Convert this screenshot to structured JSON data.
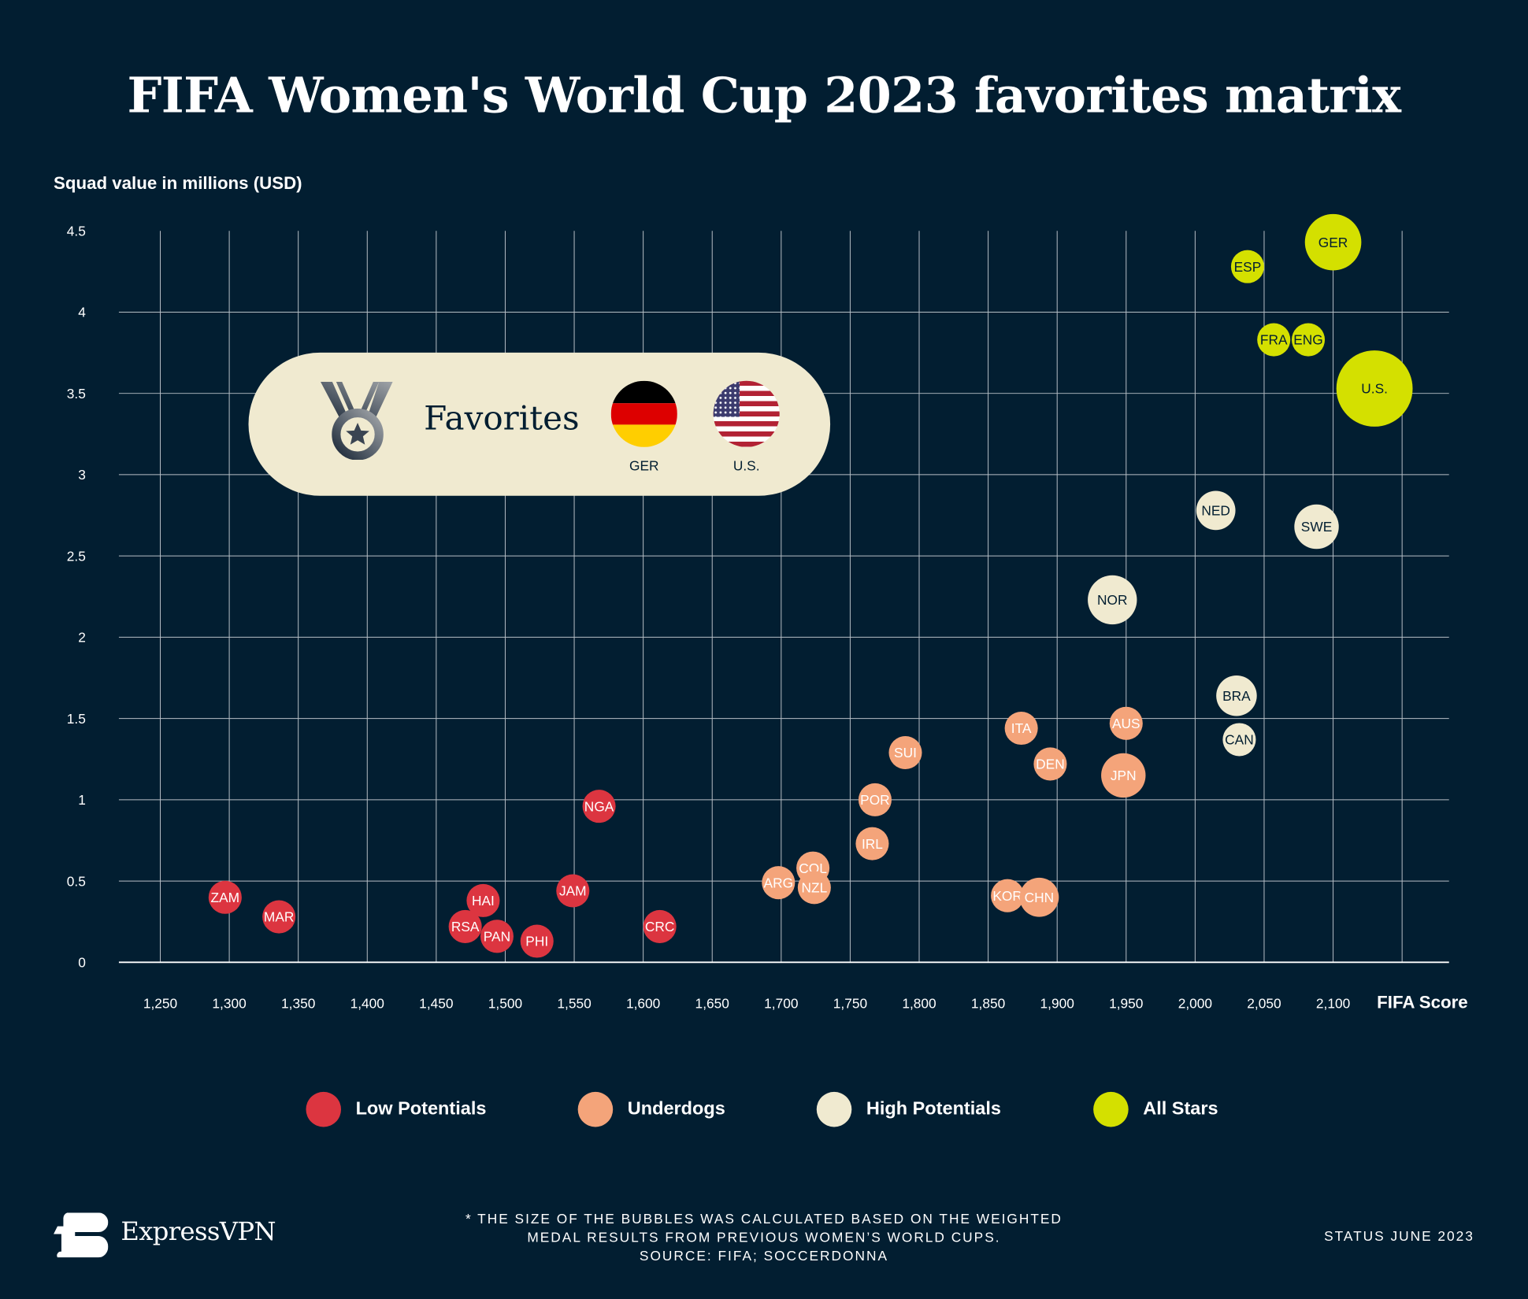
{
  "title": "FIFA Women's World Cup 2023 favorites matrix",
  "colors": {
    "background": "#021e31",
    "Low Potentials": "#dc3540",
    "Underdogs": "#f4a47a",
    "High Potentials": "#f0ead0",
    "All Stars": "#d4e000"
  },
  "favorites": {
    "label": "Favorites",
    "icon": "medal-icon",
    "teams": [
      {
        "code": "GER",
        "flag": "germany-flag-icon"
      },
      {
        "code": "U.S.",
        "flag": "usa-flag-icon"
      }
    ]
  },
  "chart_data": {
    "type": "scatter",
    "title": "FIFA Women's World Cup 2023 favorites matrix",
    "xlabel": "FIFA Score",
    "ylabel": "Squad value in millions (USD)",
    "xlim": [
      1220,
      2184
    ],
    "ylim": [
      0,
      4.5
    ],
    "xticks": [
      1250,
      1300,
      1350,
      1400,
      1450,
      1500,
      1550,
      1600,
      1650,
      1700,
      1750,
      1800,
      1850,
      1900,
      1950,
      2000,
      2050,
      2100
    ],
    "xtick_labels": [
      "1,250",
      "1,300",
      "1,350",
      "1,400",
      "1,450",
      "1,500",
      "1,550",
      "1,600",
      "1,650",
      "1,700",
      "1,750",
      "1,800",
      "1,850",
      "1,900",
      "1,950",
      "2,000",
      "2,050",
      "2,100"
    ],
    "yticks": [
      0,
      0.5,
      1,
      1.5,
      2,
      2.5,
      3,
      3.5,
      4,
      4.5
    ],
    "ytick_labels": [
      "0",
      "0.5",
      "1",
      "1.5",
      "2",
      "2.5",
      "3",
      "3.5",
      "4",
      "4.5"
    ],
    "grid": true,
    "legend_position": "bottom",
    "bubble_size_note": "relative weighted medal results",
    "series": [
      {
        "name": "Low Potentials",
        "points": [
          {
            "label": "ZAM",
            "x": 1297,
            "y": 0.4,
            "size": 1
          },
          {
            "label": "MAR",
            "x": 1336,
            "y": 0.28,
            "size": 1
          },
          {
            "label": "HAI",
            "x": 1484,
            "y": 0.38,
            "size": 1
          },
          {
            "label": "RSA",
            "x": 1471,
            "y": 0.22,
            "size": 1
          },
          {
            "label": "PAN",
            "x": 1494,
            "y": 0.16,
            "size": 1
          },
          {
            "label": "PHI",
            "x": 1523,
            "y": 0.13,
            "size": 1
          },
          {
            "label": "JAM",
            "x": 1549,
            "y": 0.44,
            "size": 1
          },
          {
            "label": "NGA",
            "x": 1568,
            "y": 0.96,
            "size": 1
          },
          {
            "label": "CRC",
            "x": 1612,
            "y": 0.22,
            "size": 1
          }
        ]
      },
      {
        "name": "Underdogs",
        "points": [
          {
            "label": "ARG",
            "x": 1698,
            "y": 0.49,
            "size": 1
          },
          {
            "label": "COL",
            "x": 1723,
            "y": 0.58,
            "size": 1
          },
          {
            "label": "NZL",
            "x": 1724,
            "y": 0.46,
            "size": 1
          },
          {
            "label": "IRL",
            "x": 1766,
            "y": 0.73,
            "size": 1
          },
          {
            "label": "POR",
            "x": 1768,
            "y": 1.0,
            "size": 1
          },
          {
            "label": "SUI",
            "x": 1790,
            "y": 1.29,
            "size": 1
          },
          {
            "label": "ITA",
            "x": 1874,
            "y": 1.44,
            "size": 1
          },
          {
            "label": "DEN",
            "x": 1895,
            "y": 1.22,
            "size": 1
          },
          {
            "label": "KOR",
            "x": 1864,
            "y": 0.41,
            "size": 1
          },
          {
            "label": "CHN",
            "x": 1887,
            "y": 0.4,
            "size": 1.4
          },
          {
            "label": "AUS",
            "x": 1950,
            "y": 1.47,
            "size": 1
          },
          {
            "label": "JPN",
            "x": 1948,
            "y": 1.15,
            "size": 1.8
          }
        ]
      },
      {
        "name": "High Potentials",
        "points": [
          {
            "label": "NOR",
            "x": 1940,
            "y": 2.23,
            "size": 2.2
          },
          {
            "label": "NED",
            "x": 2015,
            "y": 2.78,
            "size": 1.4
          },
          {
            "label": "SWE",
            "x": 2088,
            "y": 2.68,
            "size": 1.8
          },
          {
            "label": "BRA",
            "x": 2030,
            "y": 1.64,
            "size": 1.5
          },
          {
            "label": "CAN",
            "x": 2032,
            "y": 1.37,
            "size": 1
          }
        ]
      },
      {
        "name": "All Stars",
        "points": [
          {
            "label": "ESP",
            "x": 2038,
            "y": 4.28,
            "size": 1
          },
          {
            "label": "FRA",
            "x": 2057,
            "y": 3.83,
            "size": 1
          },
          {
            "label": "ENG",
            "x": 2082,
            "y": 3.83,
            "size": 1
          },
          {
            "label": "GER",
            "x": 2100,
            "y": 4.43,
            "size": 2.9
          },
          {
            "label": "U.S.",
            "x": 2130,
            "y": 3.53,
            "size": 5.3
          }
        ]
      }
    ]
  },
  "legend": [
    {
      "label": "Low Potentials"
    },
    {
      "label": "Underdogs"
    },
    {
      "label": "High Potentials"
    },
    {
      "label": "All Stars"
    }
  ],
  "footer": {
    "brand": "ExpressVPN",
    "note_lines": [
      "* THE SIZE OF THE BUBBLES WAS CALCULATED BASED ON THE WEIGHTED",
      "MEDAL RESULTS FROM PREVIOUS WOMEN’S WORLD CUPS.",
      "SOURCE: FIFA; SOCCERDONNA"
    ],
    "status": "STATUS JUNE 2023"
  }
}
